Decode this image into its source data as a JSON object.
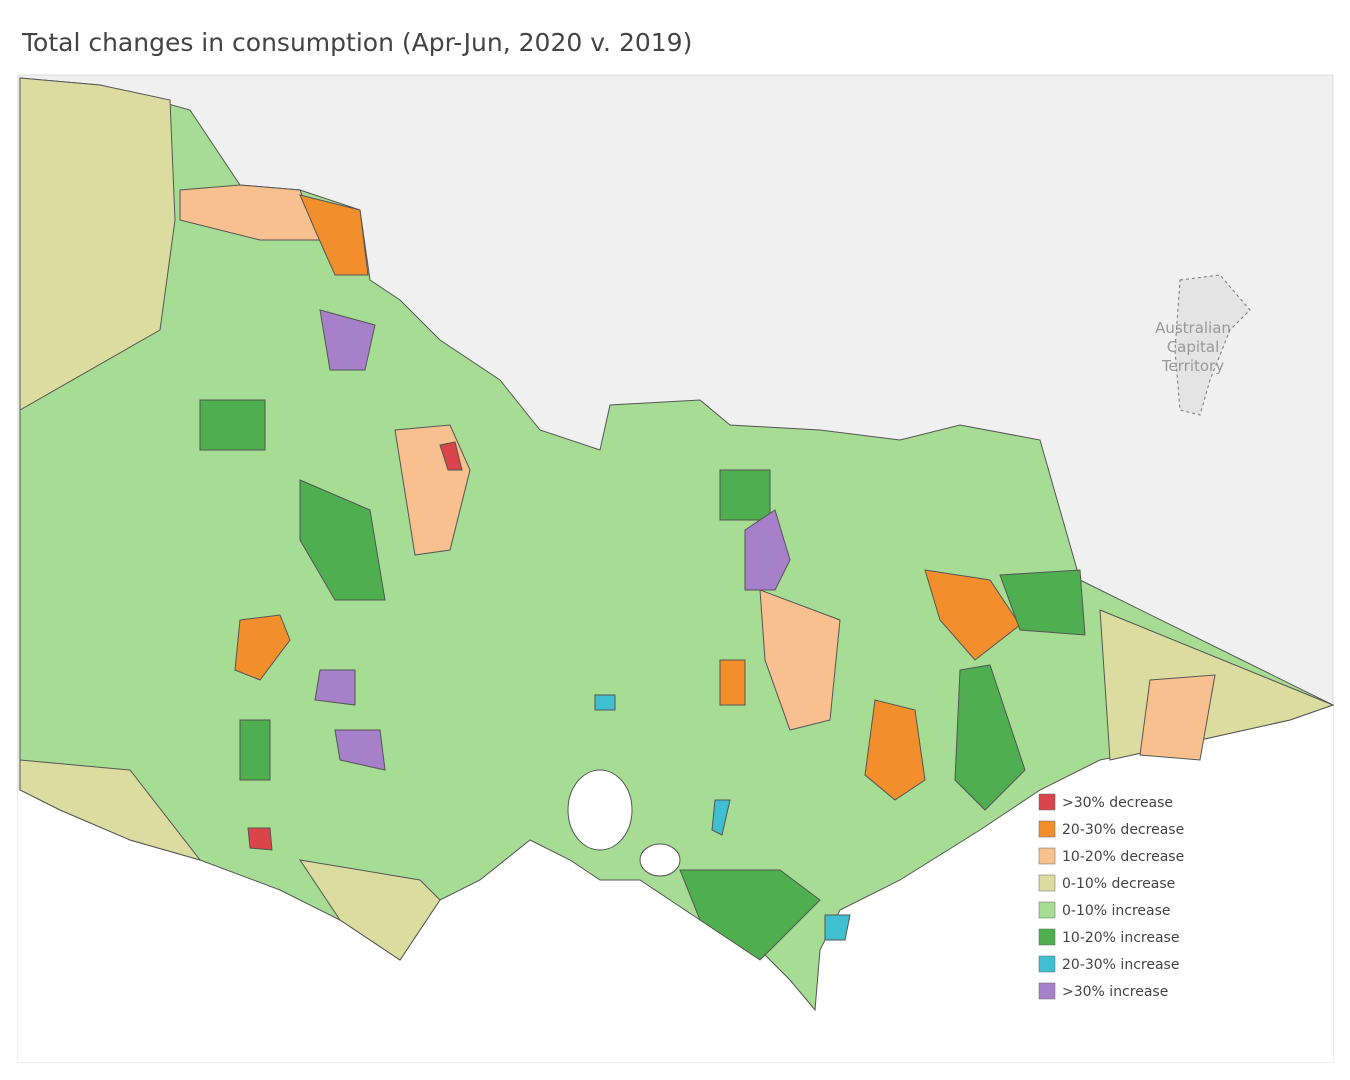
{
  "header": {
    "title": "Total changes in consumption (Apr-Jun, 2020 v. 2019)"
  },
  "map": {
    "act_label": [
      "Australian",
      "Capital",
      "Territory"
    ]
  },
  "legend": {
    "items": [
      {
        "label": ">30% decrease",
        "color": "#d9454b"
      },
      {
        "label": "20-30% decrease",
        "color": "#f28e2b"
      },
      {
        "label": "10-20% decrease",
        "color": "#f8c08e"
      },
      {
        "label": "0-10% decrease",
        "color": "#dcdca0"
      },
      {
        "label": "0-10% increase",
        "color": "#a6dc94"
      },
      {
        "label": "10-20% increase",
        "color": "#4fae4f"
      },
      {
        "label": "20-30% increase",
        "color": "#3fbfcf"
      },
      {
        "label": ">30% increase",
        "color": "#a680c8"
      }
    ]
  }
}
